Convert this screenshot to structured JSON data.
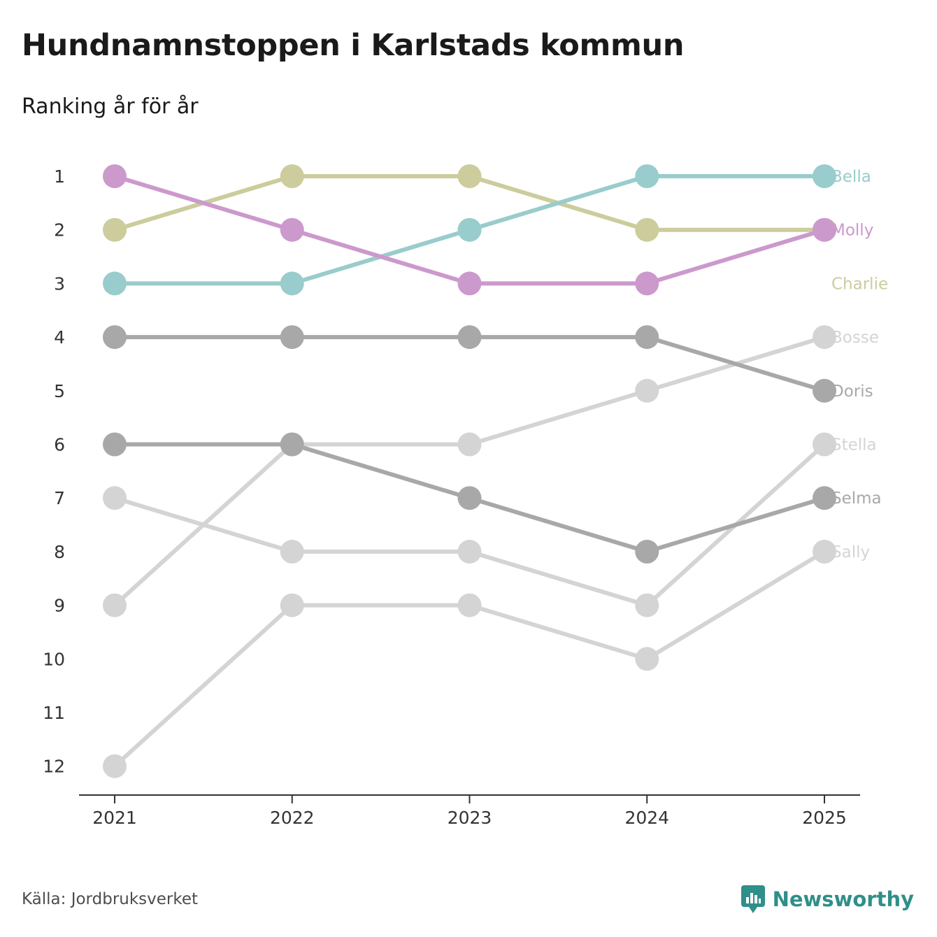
{
  "title": "Hundnamnstoppen i Karlstads kommun",
  "subtitle": "Ranking år för år",
  "source": "Källa: Jordbruksverket",
  "brand": {
    "name": "Newsworthy",
    "icon": "newsworthy-logo-icon",
    "color": "#2f8f8a"
  },
  "chart_data": {
    "type": "line",
    "title": "Hundnamnstoppen i Karlstads kommun",
    "subtitle": "Ranking år för år",
    "xlabel": "",
    "ylabel": "",
    "x": [
      "2021",
      "2022",
      "2023",
      "2024",
      "2025"
    ],
    "y_ticks": [
      "1",
      "2",
      "3",
      "4",
      "5",
      "6",
      "7",
      "8",
      "9",
      "10",
      "11",
      "12"
    ],
    "ylim": [
      1,
      12
    ],
    "y_inverted": true,
    "grid": false,
    "series": [
      {
        "name": "Bosse",
        "values": [
          9,
          6,
          6,
          5,
          4
        ],
        "color": "#d4d4d4"
      },
      {
        "name": "Stella",
        "values": [
          7,
          8,
          8,
          9,
          6
        ],
        "color": "#d4d4d4"
      },
      {
        "name": "Sally",
        "values": [
          12,
          9,
          9,
          10,
          8
        ],
        "color": "#d4d4d4"
      },
      {
        "name": "Doris",
        "values": [
          4,
          4,
          4,
          4,
          5
        ],
        "color": "#a8a8a8"
      },
      {
        "name": "Selma",
        "values": [
          6,
          6,
          7,
          8,
          7
        ],
        "color": "#a8a8a8"
      },
      {
        "name": "Charlie",
        "values": [
          2,
          1,
          1,
          2,
          2
        ],
        "color": "#cccc9c"
      },
      {
        "name": "Bella",
        "values": [
          3,
          3,
          2,
          1,
          1
        ],
        "color": "#99cccc"
      },
      {
        "name": "Molly",
        "values": [
          1,
          2,
          3,
          3,
          2
        ],
        "color": "#cc99cc"
      }
    ],
    "labels": [
      {
        "name": "Bella",
        "rank": 1,
        "color": "#99cccc"
      },
      {
        "name": "Molly",
        "rank": 2,
        "color": "#cc99cc"
      },
      {
        "name": "Charlie",
        "rank": 3,
        "color": "#cccc9c"
      },
      {
        "name": "Bosse",
        "rank": 4,
        "color": "#d4d4d4"
      },
      {
        "name": "Doris",
        "rank": 5,
        "color": "#a8a8a8"
      },
      {
        "name": "Stella",
        "rank": 6,
        "color": "#d4d4d4"
      },
      {
        "name": "Selma",
        "rank": 7,
        "color": "#a8a8a8"
      },
      {
        "name": "Sally",
        "rank": 8,
        "color": "#d4d4d4"
      }
    ]
  }
}
